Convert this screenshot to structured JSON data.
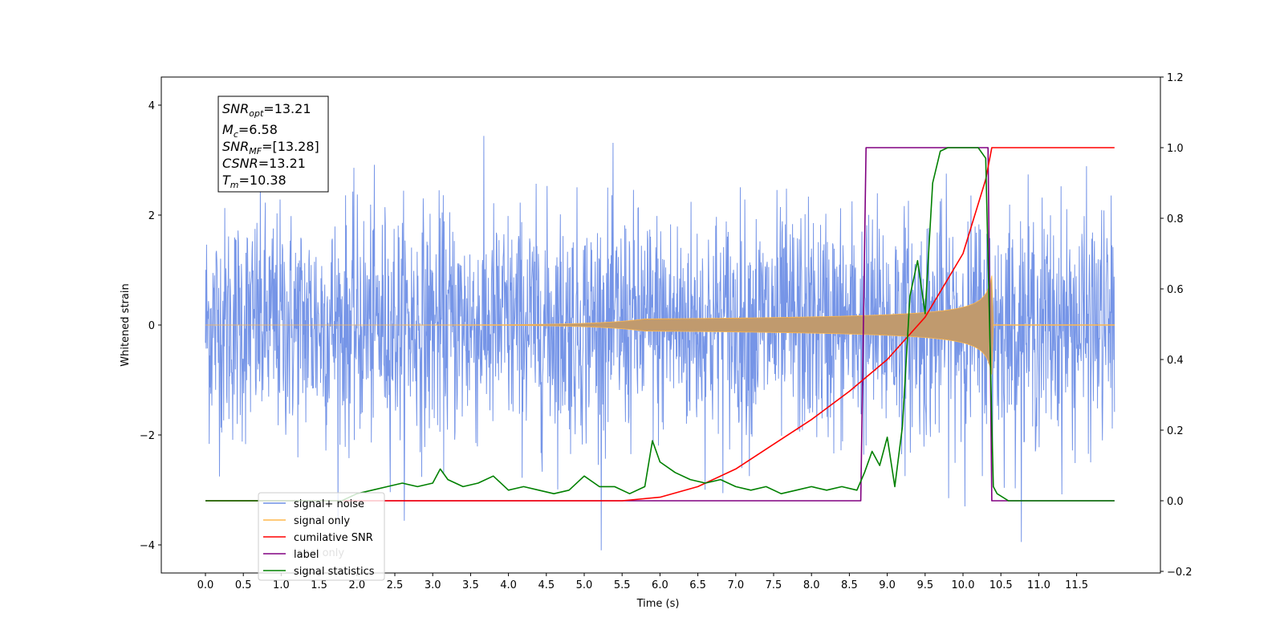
{
  "chart_data": {
    "type": "line",
    "xlabel": "Time (s)",
    "ylabel": "Whitened strain",
    "xlim": [
      -0.6,
      12.6
    ],
    "ylim": [
      -4.5,
      4.5
    ],
    "y2lim": [
      -0.2,
      1.2
    ],
    "x_ticks": [
      "0.0",
      "0.5",
      "1.0",
      "1.5",
      "2.0",
      "2.5",
      "3.0",
      "3.5",
      "4.0",
      "4.5",
      "5.0",
      "5.5",
      "6.0",
      "6.5",
      "7.0",
      "7.5",
      "8.0",
      "8.5",
      "9.0",
      "9.5",
      "10.0",
      "10.5",
      "11.0",
      "11.5"
    ],
    "y_ticks": [
      "4",
      "2",
      "0",
      "−2",
      "−4"
    ],
    "y2_ticks": [
      "1.2",
      "1.0",
      "0.8",
      "0.6",
      "0.4",
      "0.2",
      "0.0",
      "−0.2"
    ],
    "info_box": {
      "snr_opt": "=13.21",
      "mc": "=6.58",
      "snr_mf": "=[13.28]",
      "csnr": "=13.21",
      "tm": "=10.38"
    },
    "series": [
      {
        "name": "signal+ noise",
        "color": "#6f8fe6",
        "axis": "left",
        "description": "noise, std ~1, spans t 0–12"
      },
      {
        "name": "signal only",
        "color": "#ffb84d",
        "axis": "left",
        "description": "chirp growing from t≈6 to peak ~±0.9 at t=10.38, zero after"
      },
      {
        "name": "cumilative SNR",
        "color": "#ff0000",
        "axis": "right",
        "x": [
          0,
          5.5,
          6.0,
          6.5,
          7.0,
          7.5,
          8.0,
          8.5,
          9.0,
          9.5,
          10.0,
          10.3,
          10.38,
          10.4,
          12.0
        ],
        "y": [
          0,
          0,
          0.01,
          0.04,
          0.09,
          0.16,
          0.23,
          0.31,
          0.4,
          0.52,
          0.7,
          0.91,
          1.0,
          1.0,
          1.0
        ]
      },
      {
        "name": "label",
        "color": "#800080",
        "axis": "right",
        "x": [
          0,
          8.65,
          8.72,
          10.33,
          10.38,
          12.0
        ],
        "y": [
          0,
          0,
          1,
          1,
          0,
          0
        ]
      },
      {
        "name": "signal statistics",
        "color": "#008000",
        "axis": "right",
        "x": [
          0,
          1.8,
          2.0,
          2.2,
          2.4,
          2.6,
          2.8,
          3.0,
          3.1,
          3.2,
          3.4,
          3.6,
          3.8,
          4.0,
          4.2,
          4.4,
          4.6,
          4.8,
          5.0,
          5.2,
          5.4,
          5.6,
          5.8,
          5.9,
          6.0,
          6.2,
          6.4,
          6.6,
          6.8,
          7.0,
          7.2,
          7.4,
          7.6,
          7.8,
          8.0,
          8.2,
          8.4,
          8.6,
          8.7,
          8.8,
          8.9,
          9.0,
          9.1,
          9.2,
          9.3,
          9.4,
          9.5,
          9.6,
          9.7,
          9.8,
          10.0,
          10.2,
          10.3,
          10.4,
          10.45,
          10.6,
          12.0
        ],
        "y": [
          0,
          0,
          0.02,
          0.03,
          0.04,
          0.05,
          0.04,
          0.05,
          0.09,
          0.06,
          0.04,
          0.05,
          0.07,
          0.03,
          0.04,
          0.03,
          0.02,
          0.03,
          0.07,
          0.04,
          0.04,
          0.02,
          0.04,
          0.17,
          0.11,
          0.08,
          0.06,
          0.05,
          0.06,
          0.04,
          0.03,
          0.04,
          0.02,
          0.03,
          0.04,
          0.03,
          0.04,
          0.03,
          0.08,
          0.14,
          0.1,
          0.18,
          0.04,
          0.21,
          0.58,
          0.68,
          0.53,
          0.9,
          0.99,
          1.0,
          1.0,
          1.0,
          0.97,
          0.04,
          0.02,
          0.0,
          0.0
        ]
      }
    ],
    "legend": {
      "position": "lower-left",
      "items": [
        "signal+ noise",
        "signal only",
        "cumilative SNR",
        "label",
        "signal statistics"
      ],
      "hidden_text": "label only"
    }
  }
}
